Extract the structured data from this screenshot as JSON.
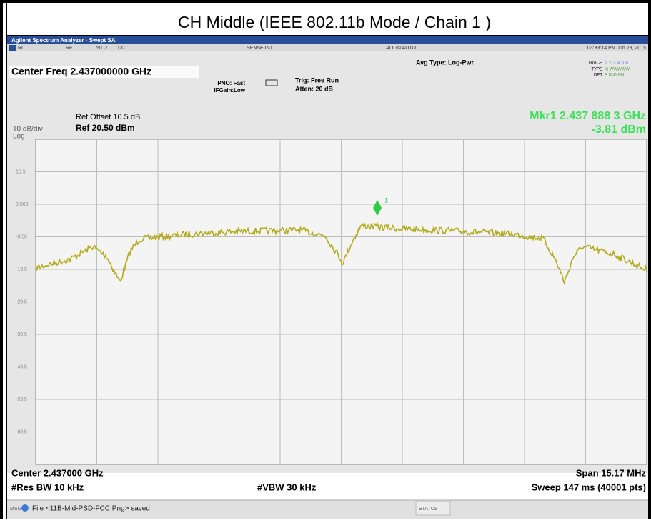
{
  "title": "CH Middle (IEEE 802.11b Mode / Chain 1 )",
  "window": {
    "title": "Agilent Spectrum Analyzer - Swept SA",
    "status_row": [
      "RL",
      "RF",
      "50 Ω",
      "DC",
      "SENSE:INT",
      "ALIGN AUTO",
      "03:33:14 PM Jun 29, 2015"
    ]
  },
  "header": {
    "center_freq": "Center Freq 2.437000000 GHz",
    "pno": "PNO: Fast",
    "ifgain": "IFGain:Low",
    "trig": "Trig: Free Run",
    "atten": "Atten: 20 dB",
    "avg_type": "Avg Type: Log-Pwr",
    "trace": "TRACE",
    "trace_nums": "1 2 3 4 5 6",
    "type": "TYPE",
    "type_val": "M WWWWW",
    "det": "DET",
    "det_val": "P NNNNN",
    "ref_offset": "Ref Offset 10.5 dB",
    "scale": "10 dB/div",
    "ref_level": "Ref 20.50 dBm",
    "log": "Log",
    "marker_freq": "Mkr1 2.437 888 3 GHz",
    "marker_level": "-3.81 dBm"
  },
  "plot": {
    "y_labels": [
      "10.5",
      "0.500",
      "-9.50",
      "-19.5",
      "-29.5",
      "-39.5",
      "-49.5",
      "-59.5",
      "-69.5"
    ],
    "marker_label": "1"
  },
  "footer": {
    "center": "Center 2.437000 GHz",
    "span": "Span 15.17 MHz",
    "rbw": "#Res BW 10 kHz",
    "vbw": "#VBW 30 kHz",
    "sweep": "Sweep  147 ms (40001 pts)"
  },
  "status_bar": {
    "msg": "MSG",
    "file": "File <11B-Mid-PSD-FCC.Png> saved",
    "status": "STATUS"
  }
}
